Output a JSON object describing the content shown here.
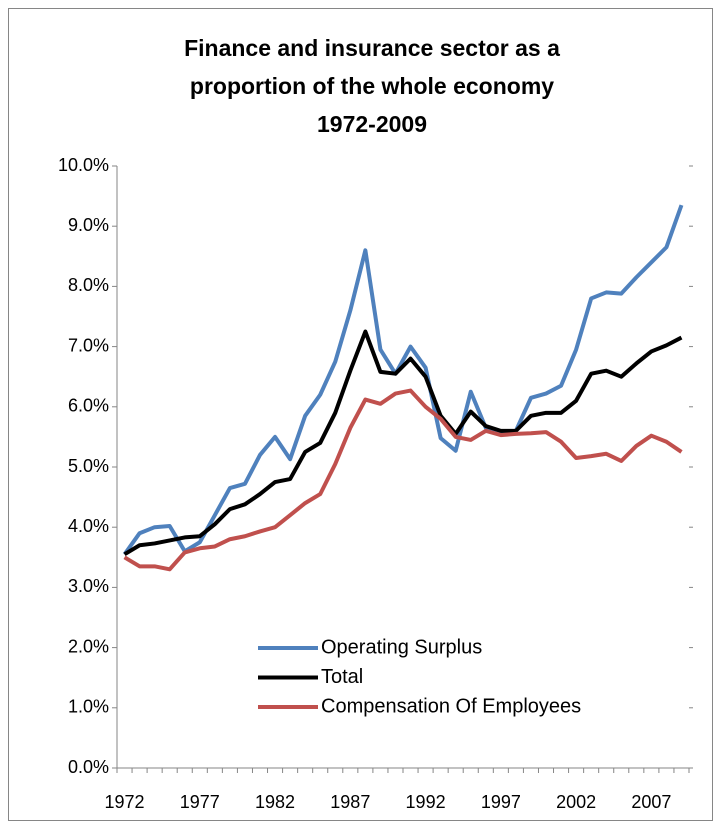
{
  "chart_data": {
    "type": "line",
    "title": [
      "Finance and insurance sector as a",
      "proportion of the whole economy",
      "1972-2009"
    ],
    "categories": [
      "1972",
      null,
      null,
      null,
      null,
      "1977",
      null,
      null,
      null,
      null,
      "1982",
      null,
      null,
      null,
      null,
      "1987",
      null,
      null,
      null,
      null,
      "1992",
      null,
      null,
      null,
      null,
      "1997",
      null,
      null,
      null,
      null,
      "2002",
      null,
      null,
      null,
      null,
      "2007",
      null,
      null
    ],
    "series": [
      {
        "name": "Operating Surplus",
        "color": "#4f81bd",
        "values": [
          3.55,
          3.9,
          4.0,
          4.02,
          3.6,
          3.75,
          4.2,
          4.65,
          4.72,
          5.2,
          5.5,
          5.13,
          5.85,
          6.2,
          6.75,
          7.6,
          8.6,
          6.95,
          6.55,
          7.0,
          6.65,
          5.48,
          5.27,
          6.25,
          5.65,
          5.55,
          5.6,
          6.15,
          6.22,
          6.35,
          6.95,
          7.8,
          7.9,
          7.88,
          8.15,
          8.4,
          8.65,
          9.35
        ]
      },
      {
        "name": "Total",
        "color": "#000000",
        "values": [
          3.55,
          3.7,
          3.73,
          3.78,
          3.83,
          3.85,
          4.05,
          4.3,
          4.38,
          4.55,
          4.75,
          4.8,
          5.25,
          5.4,
          5.9,
          6.6,
          7.25,
          6.58,
          6.55,
          6.8,
          6.5,
          5.85,
          5.55,
          5.92,
          5.68,
          5.6,
          5.6,
          5.85,
          5.9,
          5.9,
          6.1,
          6.55,
          6.6,
          6.5,
          6.72,
          6.92,
          7.02,
          7.15
        ]
      },
      {
        "name": "Compensation Of Employees",
        "color": "#c0504d",
        "values": [
          3.5,
          3.35,
          3.35,
          3.3,
          3.58,
          3.65,
          3.68,
          3.8,
          3.85,
          3.93,
          4.0,
          4.2,
          4.4,
          4.55,
          5.05,
          5.65,
          6.12,
          6.05,
          6.22,
          6.27,
          6.0,
          5.8,
          5.5,
          5.45,
          5.6,
          5.53,
          5.55,
          5.56,
          5.58,
          5.42,
          5.15,
          5.18,
          5.22,
          5.1,
          5.35,
          5.52,
          5.42,
          5.25
        ]
      }
    ],
    "ylim": [
      0,
      10
    ],
    "yticks": [
      {
        "value": 0,
        "label": "0.0%"
      },
      {
        "value": 1,
        "label": "1.0%"
      },
      {
        "value": 2,
        "label": "2.0%"
      },
      {
        "value": 3,
        "label": "3.0%"
      },
      {
        "value": 4,
        "label": "4.0%"
      },
      {
        "value": 5,
        "label": "5.0%"
      },
      {
        "value": 6,
        "label": "6.0%"
      },
      {
        "value": 7,
        "label": "7.0%"
      },
      {
        "value": 8,
        "label": "8.0%"
      },
      {
        "value": 9,
        "label": "9.0%"
      },
      {
        "value": 10,
        "label": "10.0%"
      }
    ],
    "grid": false
  }
}
